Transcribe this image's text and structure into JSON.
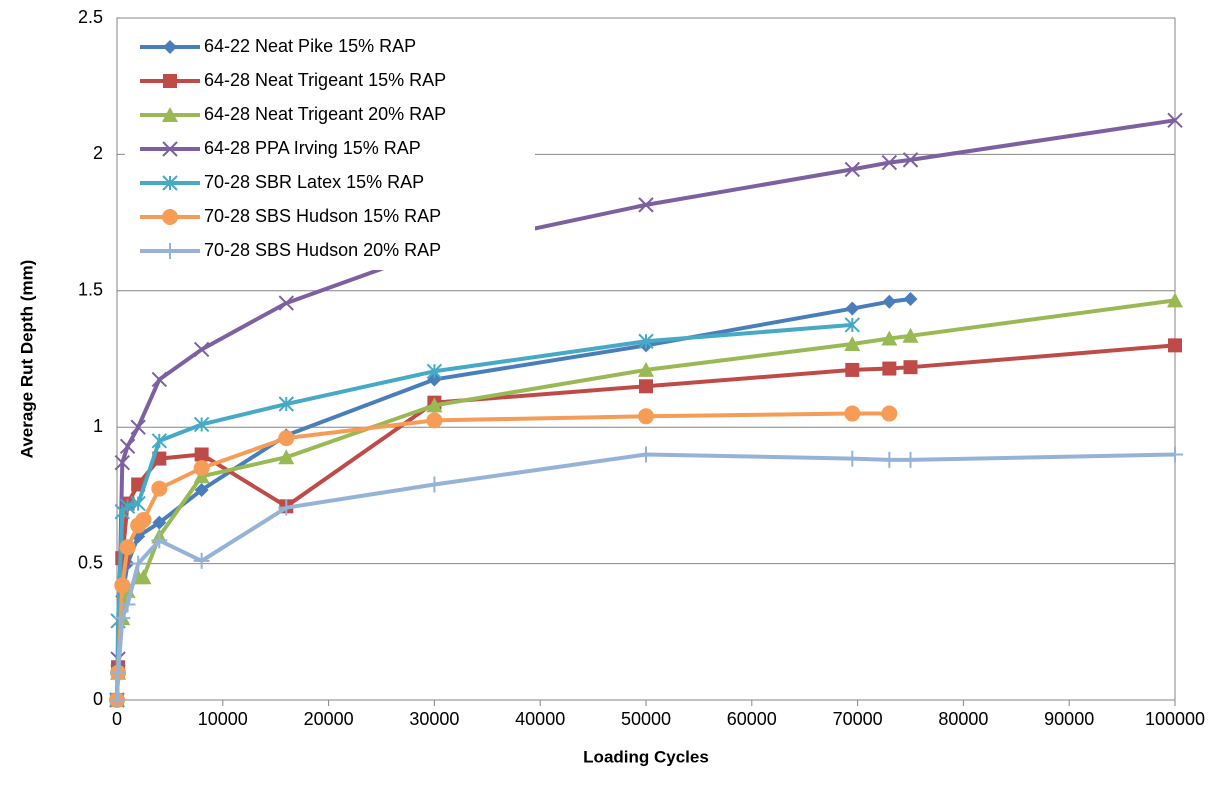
{
  "chart_data": {
    "type": "line",
    "xlabel": "Loading Cycles",
    "ylabel": "Average Rut Depth (mm)",
    "xlim": [
      0,
      100000
    ],
    "xticks": [
      0,
      10000,
      20000,
      30000,
      40000,
      50000,
      60000,
      70000,
      80000,
      90000,
      100000
    ],
    "ylim": [
      0,
      2.5
    ],
    "yticks": [
      0,
      0.5,
      1,
      1.5,
      2,
      2.5
    ],
    "grid": true,
    "legend": "upper left",
    "series": [
      {
        "name": "64-22 Neat Pike 15% RAP",
        "color": "#4a7ebb",
        "marker": "diamond",
        "x": [
          0,
          100,
          500,
          1000,
          2000,
          4000,
          8000,
          16000,
          30000,
          50000,
          69500,
          73000,
          75000
        ],
        "values": [
          0,
          0.12,
          0.38,
          0.5,
          0.6,
          0.65,
          0.77,
          0.97,
          1.175,
          1.3,
          1.435,
          1.46,
          1.47
        ]
      },
      {
        "name": "64-28 Neat Trigeant 15% RAP",
        "color": "#be4b48",
        "marker": "square",
        "x": [
          0,
          100,
          500,
          1000,
          2000,
          4000,
          8000,
          16000,
          30000,
          50000,
          69500,
          73000,
          75000,
          100000
        ],
        "values": [
          0,
          0.12,
          0.52,
          0.72,
          0.79,
          0.885,
          0.9,
          0.71,
          1.09,
          1.15,
          1.21,
          1.215,
          1.22,
          1.3
        ]
      },
      {
        "name": "64-28 Neat Trigeant 20% RAP",
        "color": "#98b954",
        "marker": "triangle",
        "x": [
          0,
          100,
          500,
          1000,
          2000,
          2500,
          4000,
          8000,
          16000,
          30000,
          50000,
          69500,
          73000,
          75000,
          100000
        ],
        "values": [
          0,
          0.1,
          0.3,
          0.4,
          0.45,
          0.45,
          0.6,
          0.82,
          0.89,
          1.08,
          1.21,
          1.305,
          1.325,
          1.335,
          1.465
        ]
      },
      {
        "name": "64-28 PPA Irving 15% RAP",
        "color": "#7d60a0",
        "marker": "x",
        "x": [
          0,
          100,
          500,
          1000,
          2000,
          4000,
          8000,
          16000,
          30000,
          50000,
          69500,
          73000,
          75000,
          100000
        ],
        "values": [
          0,
          0.15,
          0.87,
          0.93,
          1.0,
          1.175,
          1.285,
          1.455,
          1.65,
          1.815,
          1.945,
          1.97,
          1.98,
          2.125
        ]
      },
      {
        "name": "70-28 SBR Latex 15% RAP",
        "color": "#46aac5",
        "marker": "star",
        "x": [
          0,
          100,
          500,
          1000,
          2000,
          4000,
          8000,
          16000,
          30000,
          50000,
          69500
        ],
        "values": [
          0,
          0.29,
          0.69,
          0.71,
          0.72,
          0.95,
          1.01,
          1.085,
          1.205,
          1.315,
          1.375
        ]
      },
      {
        "name": "70-28 SBS Hudson 15% RAP",
        "color": "#f59d56",
        "marker": "circle",
        "x": [
          0,
          100,
          500,
          1000,
          2000,
          2500,
          4000,
          8000,
          16000,
          30000,
          50000,
          69500,
          73000
        ],
        "values": [
          0,
          0.1,
          0.42,
          0.56,
          0.64,
          0.66,
          0.775,
          0.85,
          0.96,
          1.025,
          1.04,
          1.05,
          1.05
        ]
      },
      {
        "name": "70-28 SBS Hudson 20% RAP",
        "color": "#95b3d7",
        "marker": "plus",
        "x": [
          0,
          100,
          500,
          1000,
          2000,
          4000,
          8000,
          16000,
          30000,
          50000,
          69500,
          73000,
          75000,
          100000
        ],
        "values": [
          0,
          0.1,
          0.3,
          0.35,
          0.5,
          0.585,
          0.51,
          0.705,
          0.79,
          0.9,
          0.885,
          0.88,
          0.88,
          0.9
        ]
      }
    ]
  }
}
